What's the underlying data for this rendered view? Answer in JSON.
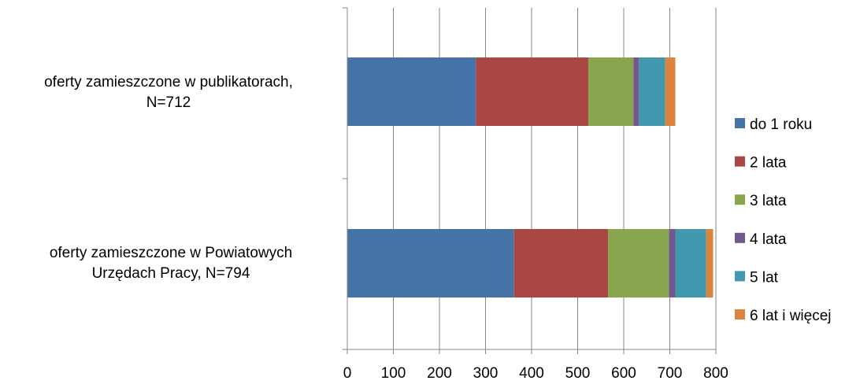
{
  "chart_data": {
    "type": "bar",
    "orientation": "horizontal",
    "stacked": true,
    "title": "",
    "xlabel": "",
    "ylabel": "",
    "xlim": [
      0,
      800
    ],
    "x_ticks": [
      "0",
      "100",
      "200",
      "300",
      "400",
      "500",
      "600",
      "700",
      "800"
    ],
    "grid": "vertical gridlines",
    "legend_position": "right",
    "categories": [
      [
        "oferty zamieszczone w publikatorach,",
        "N=712"
      ],
      [
        "oferty zamieszczone w Powiatowych",
        "Urzędach Pracy, N=794"
      ]
    ],
    "series": [
      {
        "name": "do 1 roku",
        "color": "#4572A7",
        "values": [
          279,
          362
        ]
      },
      {
        "name": "2 lata",
        "color": "#AA4643",
        "values": [
          244,
          204
        ]
      },
      {
        "name": "3 lata",
        "color": "#89A54E",
        "values": [
          98,
          132
        ]
      },
      {
        "name": "4 lata",
        "color": "#71588F",
        "values": [
          12,
          14
        ]
      },
      {
        "name": "5 lat",
        "color": "#4198AF",
        "values": [
          57,
          67
        ]
      },
      {
        "name": "6 lat i więcej",
        "color": "#DB843D",
        "values": [
          22,
          15
        ]
      }
    ]
  }
}
